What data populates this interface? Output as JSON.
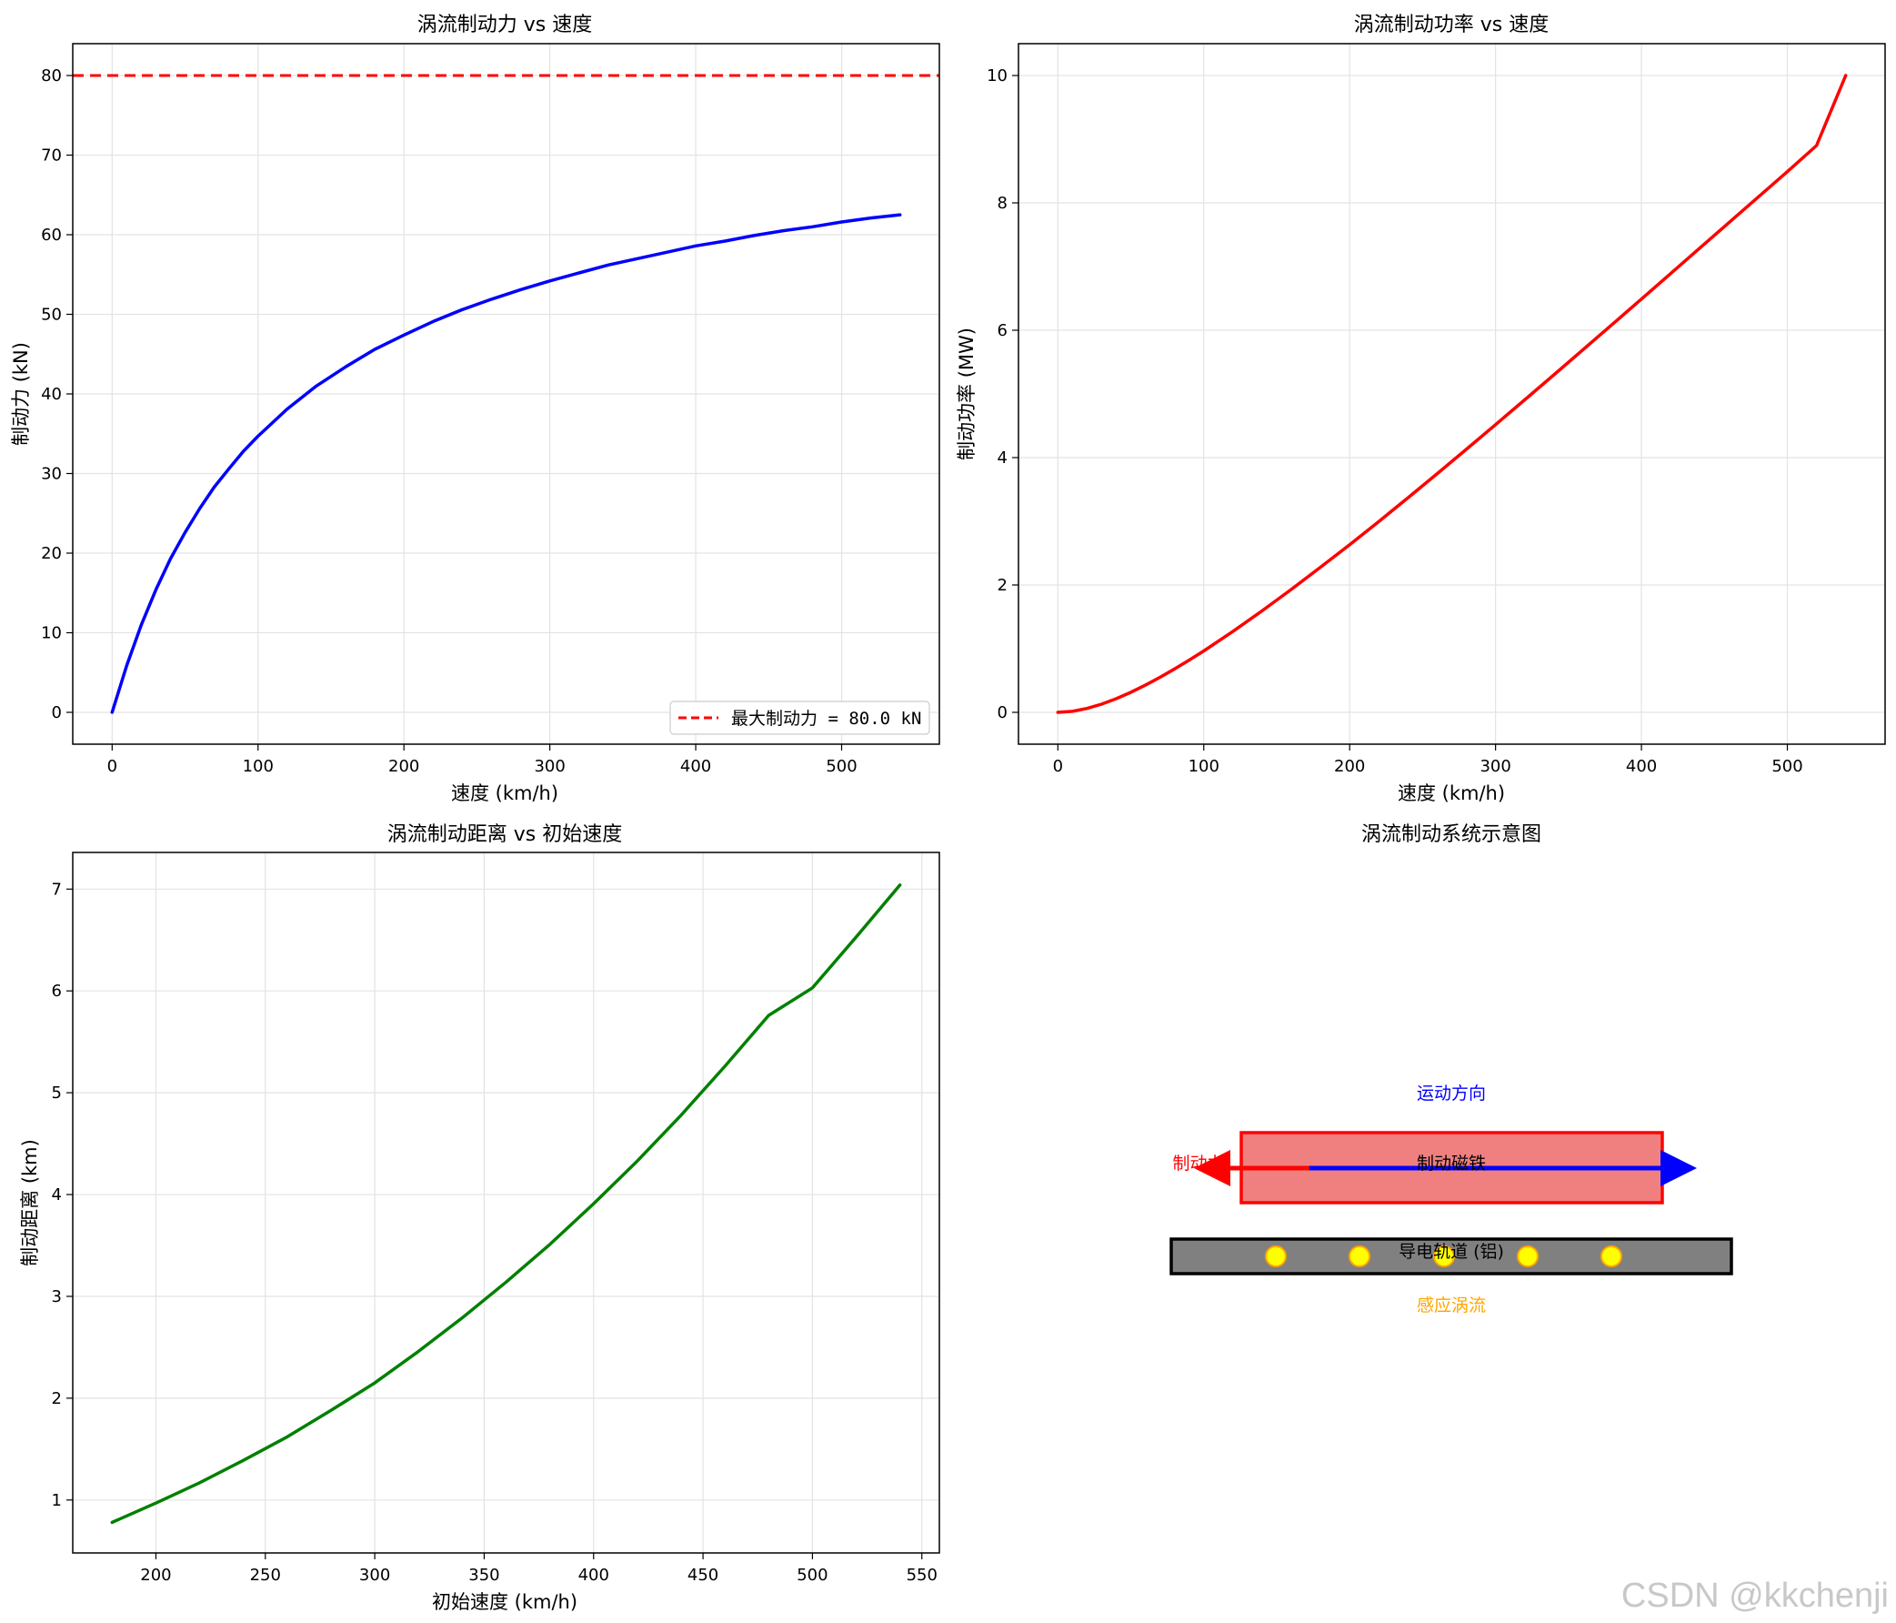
{
  "colors": {
    "force": "#0000ff",
    "maxline": "#ff0000",
    "power": "#ff0000",
    "distance": "#008000",
    "grid": "#e3e3e3",
    "magnet_fill": "#f08080",
    "magnet_edge": "#ff0000",
    "rail_fill": "#808080",
    "eddy": "#ffff00",
    "eddy_edge": "#ffa500",
    "motion_arrow": "#0000ff",
    "force_arrow": "#ff0000"
  },
  "chart_data": [
    {
      "type": "line",
      "title": "涡流制动力 vs 速度",
      "xlabel": "速度 (km/h)",
      "ylabel": "制动力 (kN)",
      "xlim": [
        -27,
        567
      ],
      "ylim": [
        -4,
        84
      ],
      "xticks": [
        0,
        100,
        200,
        300,
        400,
        500
      ],
      "yticks": [
        0,
        10,
        20,
        30,
        40,
        50,
        60,
        70,
        80
      ],
      "grid": true,
      "legend": "lower-right",
      "series": [
        {
          "x": [
            0,
            10,
            20,
            30,
            40,
            50,
            60,
            70,
            80,
            90,
            100,
            120,
            140,
            160,
            180,
            200,
            220,
            240,
            260,
            280,
            300,
            320,
            340,
            360,
            380,
            400,
            420,
            440,
            460,
            480,
            500,
            520,
            540
          ],
          "values": [
            0,
            5.9,
            11.0,
            15.4,
            19.3,
            22.6,
            25.6,
            28.3,
            30.6,
            32.8,
            34.7,
            38.1,
            41.0,
            43.4,
            45.6,
            47.4,
            49.1,
            50.6,
            51.9,
            53.1,
            54.2,
            55.2,
            56.2,
            57.0,
            57.8,
            58.6,
            59.2,
            59.9,
            60.5,
            61.0,
            61.6,
            62.1,
            62.5
          ]
        }
      ],
      "reference_lines": [
        {
          "name": "最大制动力 = 80.0 kN",
          "y": 80,
          "style": "dashed"
        }
      ]
    },
    {
      "type": "line",
      "title": "涡流制动功率 vs 速度",
      "xlabel": "速度 (km/h)",
      "ylabel": "制动功率 (MW)",
      "xlim": [
        -27,
        567
      ],
      "ylim": [
        -0.5,
        10.5
      ],
      "xticks": [
        0,
        100,
        200,
        300,
        400,
        500
      ],
      "yticks": [
        0,
        2,
        4,
        6,
        8,
        10
      ],
      "grid": true,
      "series": [
        {
          "x": [
            0,
            10,
            20,
            30,
            40,
            50,
            60,
            70,
            80,
            90,
            100,
            120,
            140,
            160,
            180,
            200,
            220,
            240,
            260,
            280,
            300,
            320,
            340,
            360,
            380,
            400,
            420,
            440,
            460,
            480,
            500,
            520,
            540
          ],
          "values": [
            0,
            0.016,
            0.061,
            0.128,
            0.214,
            0.314,
            0.427,
            0.55,
            0.681,
            0.82,
            0.964,
            1.27,
            1.594,
            1.93,
            2.278,
            2.633,
            2.997,
            3.37,
            3.748,
            4.13,
            4.517,
            4.907,
            5.3,
            5.696,
            6.092,
            6.49,
            6.89,
            7.29,
            7.69,
            8.09,
            8.49,
            8.9,
            10.0
          ]
        }
      ]
    },
    {
      "type": "line",
      "title": "涡流制动距离 vs 初始速度",
      "xlabel": "初始速度 (km/h)",
      "ylabel": "制动距离 (km)",
      "xlim": [
        162,
        558
      ],
      "ylim": [
        0.48,
        7.36
      ],
      "xticks": [
        200,
        250,
        300,
        350,
        400,
        450,
        500,
        550
      ],
      "yticks": [
        1,
        2,
        3,
        4,
        5,
        6,
        7
      ],
      "grid": true,
      "series": [
        {
          "x": [
            180,
            200,
            220,
            240,
            260,
            280,
            300,
            320,
            340,
            360,
            380,
            400,
            420,
            440,
            460,
            480,
            500,
            520,
            540
          ],
          "values": [
            0.78,
            0.97,
            1.17,
            1.39,
            1.62,
            1.88,
            2.15,
            2.46,
            2.79,
            3.14,
            3.51,
            3.91,
            4.33,
            4.78,
            5.26,
            5.76,
            6.03,
            6.53,
            7.04
          ]
        }
      ]
    }
  ],
  "diagram": {
    "title": "涡流制动系统示意图",
    "motion_label": "运动方向",
    "force_label": "制动力",
    "magnet_label": "制动磁铁",
    "rail_label": "导电轨道 (铝)",
    "eddy_label": "感应涡流"
  },
  "watermark": "CSDN @kkchenji"
}
